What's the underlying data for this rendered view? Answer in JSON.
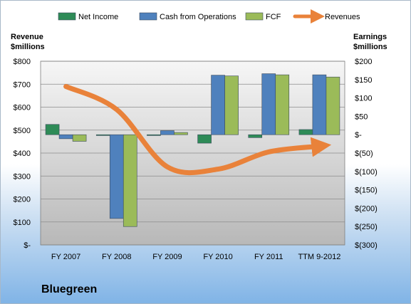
{
  "chart_data": {
    "type": "bar",
    "categories": [
      "FY 2007",
      "FY 2008",
      "FY 2009",
      "FY 2010",
      "FY 2011",
      "TTM 9-2012"
    ],
    "series": [
      {
        "name": "Net Income",
        "axis": "right",
        "color": "#2e8b57",
        "values": [
          28,
          -1,
          -2,
          -23,
          -8,
          14
        ]
      },
      {
        "name": "Cash from Operations",
        "axis": "right",
        "color": "#4f81bd",
        "values": [
          -11,
          -228,
          11,
          162,
          166,
          163
        ]
      },
      {
        "name": "FCF",
        "axis": "right",
        "color": "#9bbb59",
        "values": [
          -18,
          -250,
          6,
          160,
          163,
          157
        ]
      },
      {
        "name": "Revenues",
        "axis": "left",
        "color": "#e9823a",
        "type": "line",
        "values": [
          690,
          590,
          340,
          330,
          405,
          430
        ]
      }
    ],
    "left_axis": {
      "title": "Revenue\n$millions",
      "ylim": [
        0,
        800
      ],
      "ticks": [
        800,
        700,
        600,
        500,
        400,
        300,
        200,
        100,
        0
      ],
      "tick_labels": [
        "$800",
        "$700",
        "$600",
        "$500",
        "$400",
        "$300",
        "$200",
        "$100",
        "$-"
      ]
    },
    "right_axis": {
      "title": "Earnings\n$millions",
      "ylim": [
        -300,
        200
      ],
      "ticks": [
        200,
        150,
        100,
        50,
        0,
        -50,
        -100,
        -150,
        -200,
        -250,
        -300
      ],
      "tick_labels": [
        "$200",
        "$150",
        "$100",
        "$50",
        "$-",
        "$(50)",
        "$(100)",
        "$(150)",
        "$(200)",
        "$(250)",
        "$(300)"
      ]
    },
    "legend": [
      "Net Income",
      "Cash from Operations",
      "FCF",
      "Revenues"
    ],
    "legend_position": "top",
    "grid": true
  },
  "brand": "Bluegreen"
}
